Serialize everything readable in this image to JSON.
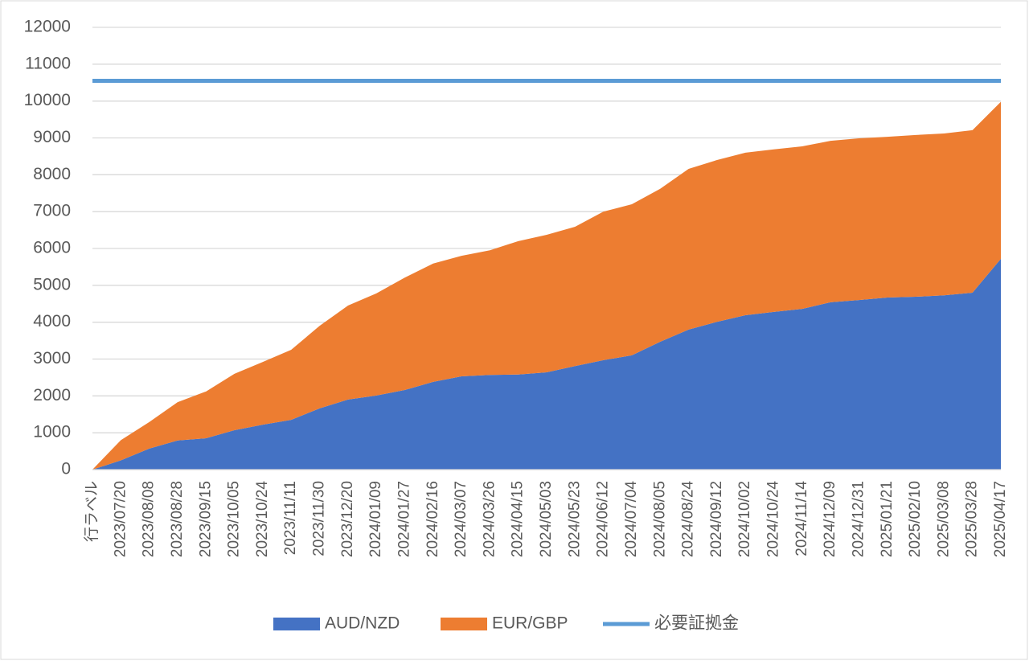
{
  "chart_data": {
    "type": "stacked_area",
    "categories": [
      "行ラベル",
      "2023/07/20",
      "2023/08/08",
      "2023/08/28",
      "2023/09/15",
      "2023/10/05",
      "2023/10/24",
      "2023/11/11",
      "2023/11/30",
      "2023/12/20",
      "2024/01/09",
      "2024/01/27",
      "2024/02/16",
      "2024/03/07",
      "2024/03/26",
      "2024/04/15",
      "2024/05/03",
      "2024/05/23",
      "2024/06/12",
      "2024/07/04",
      "2024/08/05",
      "2024/08/24",
      "2024/09/12",
      "2024/10/02",
      "2024/10/24",
      "2024/11/14",
      "2024/12/09",
      "2024/12/31",
      "2025/01/21",
      "2025/02/10",
      "2025/03/08",
      "2025/03/28",
      "2025/04/17"
    ],
    "series": [
      {
        "name": "AUD/NZD",
        "color": "#4472c4",
        "values": [
          0,
          250,
          570,
          790,
          850,
          1070,
          1220,
          1350,
          1660,
          1900,
          2010,
          2160,
          2380,
          2530,
          2570,
          2580,
          2640,
          2810,
          2970,
          3100,
          3470,
          3800,
          4010,
          4190,
          4280,
          4360,
          4540,
          4600,
          4670,
          4690,
          4730,
          4800,
          5720
        ]
      },
      {
        "name": "EUR/GBP",
        "color": "#ed7d31",
        "values": [
          0,
          550,
          720,
          1040,
          1270,
          1530,
          1700,
          1900,
          2240,
          2550,
          2770,
          3050,
          3210,
          3270,
          3380,
          3620,
          3730,
          3780,
          4030,
          4100,
          4150,
          4360,
          4390,
          4410,
          4410,
          4410,
          4380,
          4390,
          4360,
          4390,
          4390,
          4410,
          4260
        ]
      },
      {
        "name": "必要証拠金",
        "color": "#5b9bd5",
        "type": "line",
        "values": [
          10550,
          10550,
          10550,
          10550,
          10550,
          10550,
          10550,
          10550,
          10550,
          10550,
          10550,
          10550,
          10550,
          10550,
          10550,
          10550,
          10550,
          10550,
          10550,
          10550,
          10550,
          10550,
          10550,
          10550,
          10550,
          10550,
          10550,
          10550,
          10550,
          10550,
          10550,
          10550,
          10550
        ]
      }
    ],
    "ylim": [
      0,
      12000
    ],
    "yticks": [
      0,
      1000,
      2000,
      3000,
      4000,
      5000,
      6000,
      7000,
      8000,
      9000,
      10000,
      11000,
      12000
    ],
    "grid": true,
    "legend": "bottom"
  }
}
